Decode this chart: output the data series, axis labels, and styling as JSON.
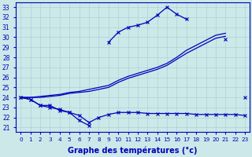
{
  "title": "Graphe des températures (°c)",
  "bg_color": "#cce8e8",
  "grid_color": "#aad4d4",
  "line_color": "#0000bb",
  "ylim_min": 20.6,
  "ylim_max": 33.5,
  "y_ticks": [
    21,
    22,
    23,
    24,
    25,
    26,
    27,
    28,
    29,
    30,
    31,
    32,
    33
  ],
  "x_ticks": [
    0,
    1,
    2,
    3,
    4,
    5,
    6,
    7,
    8,
    9,
    10,
    11,
    12,
    13,
    14,
    15,
    16,
    17,
    18,
    19,
    20,
    21,
    22,
    23
  ],
  "series": [
    {
      "x": [
        0,
        1,
        2,
        3,
        4,
        5,
        6,
        7,
        8,
        9,
        10,
        11,
        12,
        13,
        14,
        15,
        16,
        17,
        18,
        19,
        20,
        21,
        22,
        23
      ],
      "y": [
        24.0,
        23.8,
        23.2,
        23.2,
        22.7,
        22.5,
        21.7,
        21.2,
        null,
        29.5,
        30.5,
        31.0,
        31.2,
        31.5,
        32.2,
        33.0,
        32.3,
        31.8,
        null,
        null,
        null,
        29.8,
        null,
        24.0
      ],
      "marker": true,
      "lw": 0.9
    },
    {
      "x": [
        0,
        1,
        2,
        3,
        4,
        5,
        6,
        7,
        8,
        9,
        10,
        11,
        12,
        13,
        14,
        15,
        16,
        17,
        18,
        19,
        20,
        21
      ],
      "y": [
        24.0,
        24.0,
        24.0,
        24.1,
        24.2,
        24.4,
        24.5,
        24.6,
        24.8,
        25.0,
        25.5,
        25.9,
        26.2,
        26.5,
        26.8,
        27.2,
        27.8,
        28.4,
        28.9,
        29.4,
        29.9,
        30.1
      ],
      "marker": false,
      "lw": 0.9
    },
    {
      "x": [
        0,
        1,
        2,
        3,
        4,
        5,
        6,
        7,
        8,
        9,
        10,
        11,
        12,
        13,
        14,
        15,
        16,
        17,
        18,
        19,
        20,
        21
      ],
      "y": [
        24.0,
        24.0,
        24.1,
        24.2,
        24.3,
        24.5,
        24.6,
        24.8,
        25.0,
        25.2,
        25.7,
        26.1,
        26.4,
        26.7,
        27.0,
        27.4,
        28.0,
        28.7,
        29.2,
        29.7,
        30.2,
        30.4
      ],
      "marker": false,
      "lw": 0.9
    },
    {
      "x": [
        0,
        1,
        2,
        3,
        4,
        5,
        6,
        7,
        8,
        9,
        10,
        11,
        12,
        13,
        14,
        15,
        16,
        17,
        18,
        19,
        20,
        21,
        22,
        23
      ],
      "y": [
        24.0,
        23.8,
        23.2,
        23.0,
        22.8,
        22.5,
        22.2,
        21.5,
        22.0,
        22.3,
        22.5,
        22.5,
        22.5,
        22.4,
        22.4,
        22.4,
        22.4,
        22.4,
        22.3,
        22.3,
        22.3,
        22.3,
        22.3,
        22.2
      ],
      "marker": true,
      "lw": 0.9
    }
  ]
}
